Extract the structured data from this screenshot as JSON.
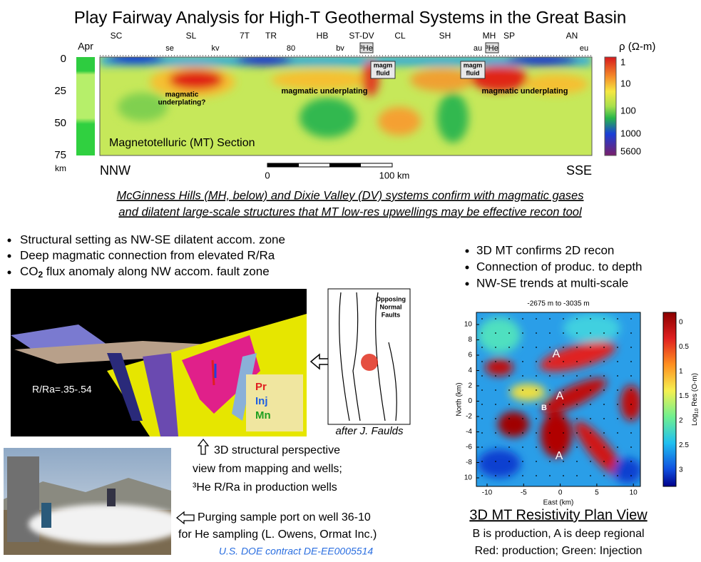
{
  "title": "Play Fairway Analysis for High-T Geothermal Systems in the Great Basin",
  "mt_section": {
    "apr_label": "Apr",
    "sites_top": [
      "SC",
      "SL",
      "7T",
      "TR",
      "HB",
      "ST-DV",
      "CL",
      "SH",
      "MH",
      "SP",
      "AN"
    ],
    "sites_bottom": [
      "se",
      "kv",
      "80",
      "bv",
      "³He",
      "au",
      "³He",
      "eu"
    ],
    "depth_ticks": [
      0,
      25,
      50,
      75
    ],
    "depth_unit": "km",
    "resistivity_label": "ρ (Ω-m)",
    "colorbar_ticks": [
      1,
      10,
      100,
      1000,
      5600
    ],
    "underplating_query": [
      "magmatic",
      "underplating?"
    ],
    "underplating": [
      "magmatic underplating",
      "magmatic underplating"
    ],
    "magm_fluid": [
      [
        "magm",
        "fluid"
      ],
      [
        "magm",
        "fluid"
      ]
    ],
    "section_label": "Magnetotelluric (MT) Section",
    "left_end": "NNW",
    "right_end": "SSE",
    "scale_start": 0,
    "scale_end": "100 km"
  },
  "caption": [
    "McGinness Hills (MH, below) and Dixie Valley (DV) systems confirm with magmatic gases",
    "and dilatent large-scale structures that MT low-res upwellings may be effective recon tool"
  ],
  "left_bullets": [
    [
      "Structural setting as NW-SE dilatent accom. zone"
    ],
    [
      "Deep magmatic connection from elevated R/Ra"
    ],
    [
      "CO",
      "2",
      " flux anomaly along NW accom. fault zone"
    ]
  ],
  "right_bullets": [
    "3D MT confirms 2D recon",
    "Connection of produc. to depth",
    "NW-SE trends at multi-scale"
  ],
  "structural_view": {
    "ratio_label": "R/Ra=.35-.54",
    "legend": [
      "Pr",
      "Inj",
      "Mn"
    ]
  },
  "fault_sketch": {
    "title": [
      "Opposing",
      "Normal",
      "Faults"
    ],
    "credit": "after J. Faulds"
  },
  "structural_caption": [
    "3D structural perspective",
    "view from mapping and wells;",
    "³He R/Ra in production wells"
  ],
  "photo_caption": [
    "Purging sample port on well 36-10",
    "for He sampling (L. Owens, Ormat Inc.)"
  ],
  "contract": "U.S. DOE contract DE-EE0005514",
  "plan_view": {
    "depth_range": "-2675 m to -3035 m",
    "y_label": "North (km)",
    "x_label": "East (km)",
    "y_ticks": [
      10,
      8,
      6,
      4,
      2,
      0,
      -2,
      -4,
      -6,
      -8,
      10
    ],
    "x_ticks": [
      -10,
      -5,
      0,
      5,
      10
    ],
    "colorbar_ticks": [
      0,
      0.5,
      1,
      1.5,
      2,
      2.5,
      3
    ],
    "colorbar_label": [
      "Log",
      "10",
      " Res (O-m)"
    ],
    "labels": [
      "A",
      "A",
      "A",
      "B"
    ]
  },
  "plan_title": "3D MT Resistivity Plan View",
  "plan_notes": [
    "B is production, A is deep regional",
    "Red: production; Green: Injection"
  ]
}
